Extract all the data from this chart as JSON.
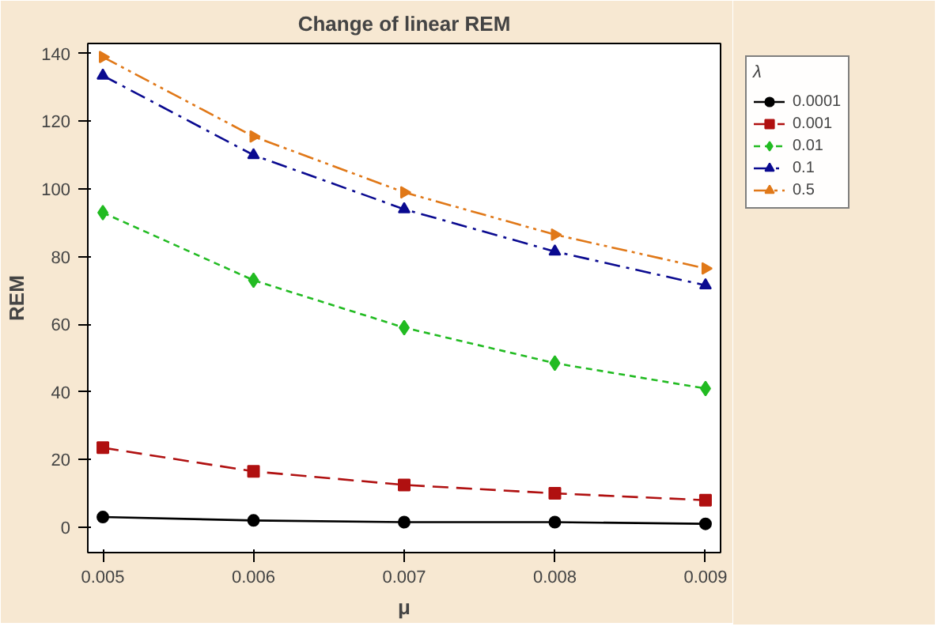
{
  "chart_data": {
    "type": "line",
    "title": "Change of linear REM",
    "xlabel": "μ",
    "ylabel": "REM",
    "legend_title": "λ",
    "legend": "top right",
    "grid": false,
    "x": [
      0.005,
      0.006,
      0.007,
      0.008,
      0.009
    ],
    "xlim": [
      0.0049,
      0.0091
    ],
    "xticks": [
      0.005,
      0.006,
      0.007,
      0.008,
      0.009
    ],
    "ylim": [
      -7.5,
      143
    ],
    "yticks": [
      0,
      20,
      40,
      60,
      80,
      100,
      120,
      140
    ],
    "series": [
      {
        "name": "0.0001",
        "color": "#000000",
        "marker": "circle",
        "line_style": "solid",
        "values": [
          3,
          2,
          1.5,
          1.5,
          1
        ]
      },
      {
        "name": "0.001",
        "color": "#b01010",
        "marker": "square",
        "line_style": "dashed",
        "values": [
          23.5,
          16.5,
          12.5,
          10,
          8
        ]
      },
      {
        "name": "0.01",
        "color": "#22bb22",
        "marker": "diamond",
        "line_style": "dotted",
        "values": [
          93,
          73,
          59,
          48.5,
          41
        ]
      },
      {
        "name": "0.1",
        "color": "#0a0a90",
        "marker": "triangle",
        "line_style": "dashdot",
        "values": [
          133.5,
          110,
          94,
          81.5,
          71.5
        ]
      },
      {
        "name": "0.5",
        "color": "#e07818",
        "marker": "triangle_right",
        "line_style": "dashdotdot",
        "values": [
          139,
          115.5,
          99,
          86.5,
          76.5
        ]
      }
    ]
  }
}
